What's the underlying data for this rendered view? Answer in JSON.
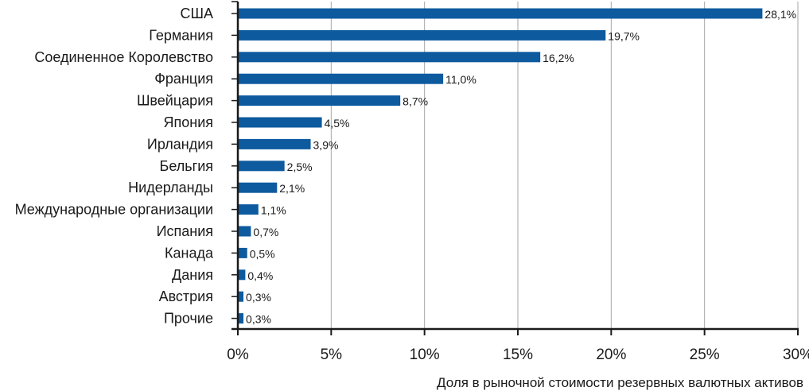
{
  "chart_data": {
    "type": "bar",
    "orientation": "horizontal",
    "title": "",
    "xlabel": "Доля в рыночной стоимости резервных валютных активов",
    "ylabel": "",
    "xlim": [
      0,
      30
    ],
    "x_ticks": [
      0,
      5,
      10,
      15,
      20,
      25,
      30
    ],
    "x_tick_labels": [
      "0%",
      "5%",
      "10%",
      "15%",
      "20%",
      "25%",
      "30%"
    ],
    "grid": "vertical",
    "bar_color": "#0d5a9e",
    "categories": [
      "США",
      "Германия",
      "Соединенное Королевство",
      "Франция",
      "Швейцария",
      "Япония",
      "Ирландия",
      "Бельгия",
      "Нидерланды",
      "Международные организации",
      "Испания",
      "Канада",
      "Дания",
      "Австрия",
      "Прочие"
    ],
    "values": [
      28.1,
      19.7,
      16.2,
      11.0,
      8.7,
      4.5,
      3.9,
      2.5,
      2.1,
      1.1,
      0.7,
      0.5,
      0.4,
      0.3,
      0.3
    ],
    "value_labels": [
      "28,1%",
      "19,7%",
      "16,2%",
      "11,0%",
      "8,7%",
      "4,5%",
      "3,9%",
      "2,5%",
      "2,1%",
      "1,1%",
      "0,7%",
      "0,5%",
      "0,4%",
      "0,3%",
      "0,3%"
    ]
  }
}
